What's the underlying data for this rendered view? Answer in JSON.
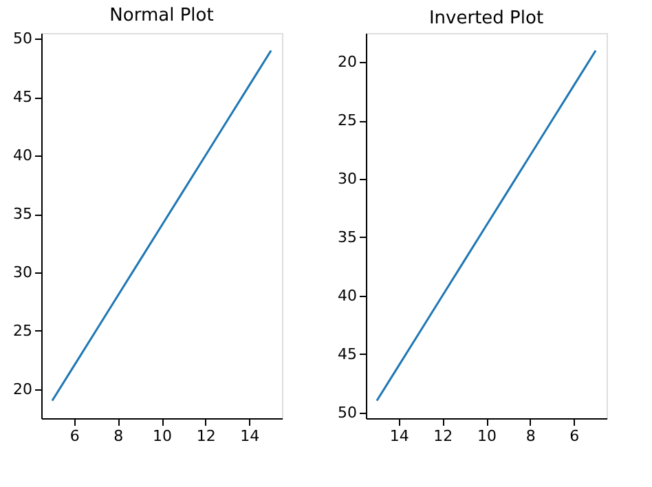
{
  "chart_data": [
    {
      "type": "line",
      "title": "Normal Plot",
      "x": [
        5,
        6,
        7,
        8,
        9,
        10,
        11,
        12,
        13,
        14,
        15
      ],
      "series": [
        {
          "color": "#1f77b4",
          "values": [
            19,
            22,
            25,
            28,
            31,
            34,
            37,
            40,
            43,
            46,
            49
          ]
        }
      ],
      "xlim": [
        4.5,
        15.5
      ],
      "ylim": [
        17.5,
        50.5
      ],
      "xticks": [
        6,
        8,
        10,
        12,
        14
      ],
      "yticks": [
        20,
        25,
        30,
        35,
        40,
        45,
        50
      ],
      "grid": false
    },
    {
      "type": "line",
      "title": "Inverted Plot",
      "x": [
        5,
        6,
        7,
        8,
        9,
        10,
        11,
        12,
        13,
        14,
        15
      ],
      "series": [
        {
          "color": "#1f77b4",
          "values": [
            19,
            22,
            25,
            28,
            31,
            34,
            37,
            40,
            43,
            46,
            49
          ]
        }
      ],
      "xlim": [
        15.5,
        4.5
      ],
      "ylim": [
        50.5,
        17.5
      ],
      "xticks": [
        14,
        12,
        10,
        8,
        6
      ],
      "yticks": [
        20,
        25,
        30,
        35,
        40,
        45,
        50
      ],
      "grid": false
    }
  ]
}
